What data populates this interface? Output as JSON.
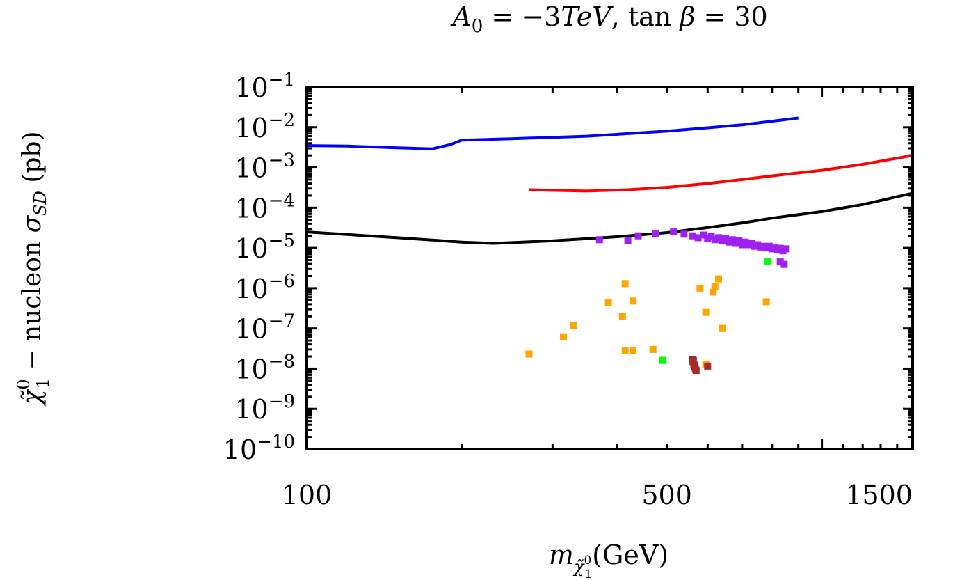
{
  "chart_data": {
    "type": "scatter",
    "title": "A_0 = −3TeV, tan β = 30",
    "title_parts": {
      "a0": "A",
      "a0_sub": "0",
      "eq1": " = −3",
      "tev": "TeV",
      "comma": ", tan ",
      "beta": "β",
      "eq2": " = 30"
    },
    "xlabel": "m_χ̃⁰₁(GeV)",
    "xlabel_parts": {
      "m": "m",
      "chi": "χ̃",
      "sup": "0",
      "sub": "1",
      "unit": "(GeV)"
    },
    "ylabel": "χ̃⁰₁ − nucleon σ_SD (pb)",
    "ylabel_parts": {
      "chi": "χ̃",
      "sup": "0",
      "sub": "1",
      "mid": " − nucleon ",
      "sigma": "σ",
      "sigma_sub": "SD",
      "unit": " (pb)"
    },
    "xscale": "log",
    "yscale": "log",
    "xlim": [
      100,
      1500
    ],
    "ylim_exponent": [
      -10,
      -1
    ],
    "x_tick_labels": [
      {
        "value": 100,
        "label": "100"
      },
      {
        "value": 500,
        "label": "500"
      },
      {
        "value": 1500,
        "label": "1500"
      }
    ],
    "y_tick_labels": [
      {
        "exp": -1,
        "base": "10",
        "sup": "−1"
      },
      {
        "exp": -2,
        "base": "10",
        "sup": "−2"
      },
      {
        "exp": -3,
        "base": "10",
        "sup": "−3"
      },
      {
        "exp": -4,
        "base": "10",
        "sup": "−4"
      },
      {
        "exp": -5,
        "base": "10",
        "sup": "−5"
      },
      {
        "exp": -6,
        "base": "10",
        "sup": "−6"
      },
      {
        "exp": -7,
        "base": "10",
        "sup": "−7"
      },
      {
        "exp": -8,
        "base": "10",
        "sup": "−8"
      },
      {
        "exp": -9,
        "base": "10",
        "sup": "−9"
      },
      {
        "exp": -10,
        "base": "10",
        "sup": "−10"
      }
    ],
    "lines": [
      {
        "name": "blue-limit",
        "color": "#0000ff",
        "x": [
          100,
          120,
          150,
          175,
          190,
          200,
          250,
          350,
          500,
          700,
          900
        ],
        "y": [
          0.0035,
          0.0034,
          0.0031,
          0.0029,
          0.0037,
          0.0048,
          0.0052,
          0.006,
          0.008,
          0.0115,
          0.017
        ]
      },
      {
        "name": "red-limit",
        "color": "#ff0000",
        "x": [
          270,
          300,
          350,
          420,
          500,
          600,
          700,
          800,
          1000,
          1200,
          1500
        ],
        "y": [
          0.00028,
          0.00027,
          0.00026,
          0.00028,
          0.00032,
          0.0004,
          0.0005,
          0.00062,
          0.00085,
          0.0012,
          0.002
        ]
      },
      {
        "name": "black-limit",
        "color": "#000000",
        "x": [
          100,
          150,
          200,
          230,
          300,
          400,
          500,
          600,
          700,
          800,
          1000,
          1200,
          1500
        ],
        "y": [
          2.5e-05,
          1.8e-05,
          1.4e-05,
          1.3e-05,
          1.5e-05,
          1.9e-05,
          2.4e-05,
          3.2e-05,
          4.2e-05,
          5.5e-05,
          8e-05,
          0.00012,
          0.00023
        ]
      }
    ],
    "series": [
      {
        "name": "purple",
        "color": "#a020f0",
        "x": [
          370,
          420,
          440,
          475,
          515,
          540,
          560,
          575,
          590,
          600,
          610,
          620,
          630,
          640,
          650,
          660,
          670,
          680,
          690,
          700,
          710,
          720,
          730,
          740,
          750,
          760,
          770,
          780,
          790,
          800,
          810,
          820,
          830,
          840,
          850,
          845,
          830
        ],
        "y": [
          1.6e-05,
          1.5e-05,
          2e-05,
          2.3e-05,
          2.5e-05,
          2.2e-05,
          2e-05,
          1.8e-05,
          2.1e-05,
          1.7e-05,
          1.9e-05,
          1.6e-05,
          1.8e-05,
          1.5e-05,
          1.7e-05,
          1.4e-05,
          1.6e-05,
          1.3e-05,
          1.5e-05,
          1.2e-05,
          1.4e-05,
          1.2e-05,
          1.3e-05,
          1.1e-05,
          1.2e-05,
          1.05e-05,
          1.1e-05,
          1e-05,
          1.1e-05,
          9.5e-06,
          1e-05,
          9e-06,
          9.8e-06,
          8.5e-06,
          9.5e-06,
          3.9e-06,
          4.5e-06
        ]
      },
      {
        "name": "orange",
        "color": "#ffa500",
        "x": [
          270,
          315,
          330,
          385,
          410,
          415,
          415,
          430,
          430,
          470,
          580,
          595,
          595,
          615,
          620,
          630,
          640,
          640,
          780
        ],
        "y": [
          2.3e-08,
          6.2e-08,
          1.2e-07,
          4.5e-07,
          2e-07,
          1.3e-06,
          2.8e-08,
          4.8e-07,
          2.8e-08,
          3e-08,
          1e-06,
          1.3e-08,
          2.5e-07,
          8e-07,
          1.1e-06,
          1.7e-06,
          1e-07,
          1e-07,
          4.6e-07
        ]
      },
      {
        "name": "green",
        "color": "#00ff00",
        "x": [
          490,
          785
        ],
        "y": [
          1.6e-08,
          4.5e-06
        ]
      },
      {
        "name": "brown",
        "color": "#a52a2a",
        "x": [
          560,
          562,
          564,
          566,
          568,
          570,
          565,
          563,
          600
        ],
        "y": [
          1.7e-08,
          1.5e-08,
          1.3e-08,
          1.1e-08,
          1e-08,
          9e-09,
          1.2e-08,
          1.6e-08,
          1.15e-08
        ]
      }
    ]
  }
}
